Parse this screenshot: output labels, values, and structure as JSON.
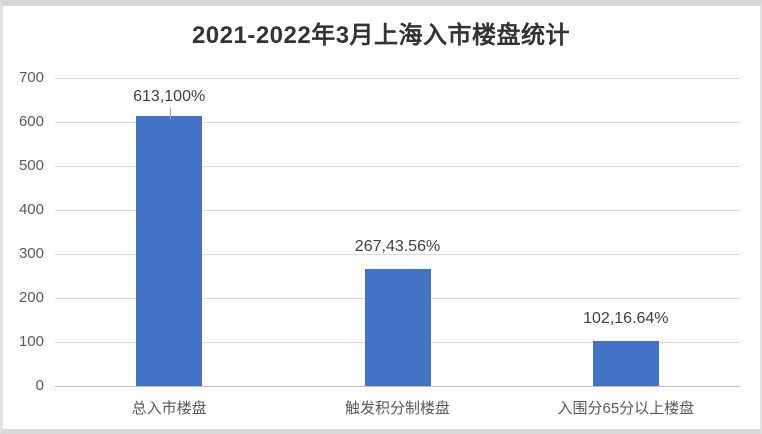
{
  "chart_data": {
    "type": "bar",
    "title": "2021-2022年3月上海入市楼盘统计",
    "categories": [
      "总入市楼盘",
      "触发积分制楼盘",
      "入围分65分以上楼盘"
    ],
    "values": [
      613,
      267,
      102
    ],
    "percentages": [
      100,
      43.56,
      16.64
    ],
    "data_labels": [
      "613,100%",
      "267,43.56%",
      "102,16.64%"
    ],
    "label_has_leader_line": [
      true,
      false,
      false
    ],
    "xlabel": "",
    "ylabel": "",
    "ylim": [
      0,
      700
    ],
    "ytick_step": 100,
    "yticks": [
      0,
      100,
      200,
      300,
      400,
      500,
      600,
      700
    ],
    "grid": true,
    "legend_position": "none",
    "bar_color": "#4472c4"
  }
}
